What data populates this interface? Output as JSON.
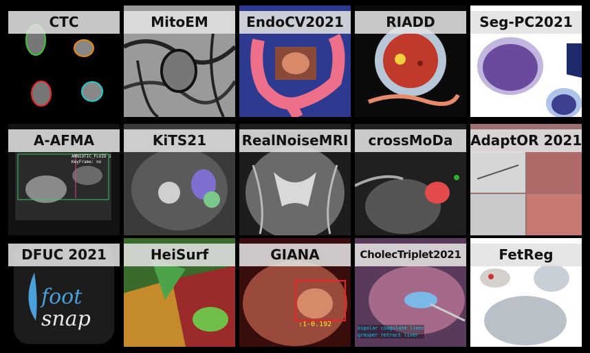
{
  "tiles": [
    {
      "label": "CTC"
    },
    {
      "label": "MitoEM"
    },
    {
      "label": "EndoCV2021"
    },
    {
      "label": "RIADD"
    },
    {
      "label": "Seg-PC2021"
    },
    {
      "label": "A-AFMA"
    },
    {
      "label": "KiTS21"
    },
    {
      "label": "RealNoiseMRI"
    },
    {
      "label": "crossMoDa"
    },
    {
      "label": "AdaptOR 2021"
    },
    {
      "label": "DFUC 2021"
    },
    {
      "label": "HeiSurf"
    },
    {
      "label": "GIANA"
    },
    {
      "label": "CholecTriplet2021"
    },
    {
      "label": "FetReg"
    }
  ],
  "afma_overlay": {
    "line1": "AMNIOTIC_FLUID 1",
    "line2": "KeyFrame: no"
  },
  "giana_overlay": {
    "text": ":1-0.192"
  },
  "cholec_overlay": {
    "line1": "bipolar coagulate liver",
    "line2": "grasper retract liver"
  },
  "dfuc_logo": {
    "word1": "foot",
    "word2": "snap"
  }
}
